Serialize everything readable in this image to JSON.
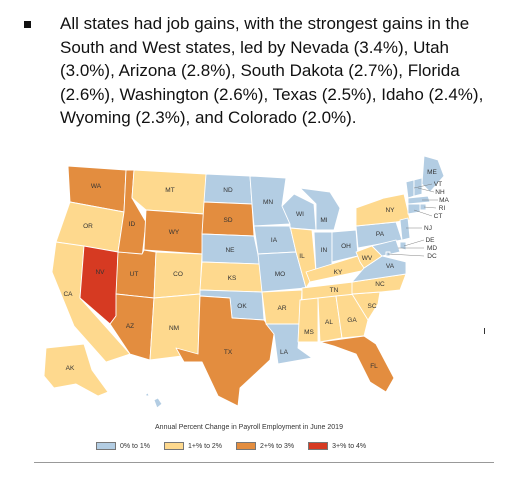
{
  "bullet": {
    "text": "All states had job gains, with the strongest gains in the South and West states, led by Nevada (3.4%), Utah (3.0%), Arizona (2.8%), South Dakota (2.7%), Florida (2.6%), Washington (2.6%), Texas (2.5%), Idaho (2.4%), Wyoming (2.3%), and Colorado (2.0%)."
  },
  "map": {
    "caption": "Annual Percent Change in Payroll Employment in June 2019",
    "legend": [
      {
        "id": "c1",
        "label": "0% to 1%",
        "color": "#b3cde3"
      },
      {
        "id": "c2",
        "label": "1+% to 2%",
        "color": "#fed98e"
      },
      {
        "id": "c3",
        "label": "2+% to 3%",
        "color": "#e38d3f"
      },
      {
        "id": "c4",
        "label": "3+% to 4%",
        "color": "#d63a22"
      }
    ],
    "states": [
      {
        "abbr": "WA",
        "class": "c3"
      },
      {
        "abbr": "OR",
        "class": "c2"
      },
      {
        "abbr": "CA",
        "class": "c2"
      },
      {
        "abbr": "NV",
        "class": "c4"
      },
      {
        "abbr": "ID",
        "class": "c3"
      },
      {
        "abbr": "MT",
        "class": "c2"
      },
      {
        "abbr": "WY",
        "class": "c3"
      },
      {
        "abbr": "UT",
        "class": "c3"
      },
      {
        "abbr": "AZ",
        "class": "c3"
      },
      {
        "abbr": "CO",
        "class": "c2"
      },
      {
        "abbr": "NM",
        "class": "c2"
      },
      {
        "abbr": "ND",
        "class": "c1"
      },
      {
        "abbr": "SD",
        "class": "c3"
      },
      {
        "abbr": "NE",
        "class": "c1"
      },
      {
        "abbr": "KS",
        "class": "c2"
      },
      {
        "abbr": "OK",
        "class": "c1"
      },
      {
        "abbr": "TX",
        "class": "c3"
      },
      {
        "abbr": "MN",
        "class": "c1"
      },
      {
        "abbr": "IA",
        "class": "c1"
      },
      {
        "abbr": "MO",
        "class": "c1"
      },
      {
        "abbr": "AR",
        "class": "c2"
      },
      {
        "abbr": "LA",
        "class": "c1"
      },
      {
        "abbr": "WI",
        "class": "c1"
      },
      {
        "abbr": "IL",
        "class": "c2"
      },
      {
        "abbr": "MI",
        "class": "c1"
      },
      {
        "abbr": "IN",
        "class": "c1"
      },
      {
        "abbr": "OH",
        "class": "c1"
      },
      {
        "abbr": "KY",
        "class": "c2"
      },
      {
        "abbr": "TN",
        "class": "c2"
      },
      {
        "abbr": "MS",
        "class": "c2"
      },
      {
        "abbr": "AL",
        "class": "c2"
      },
      {
        "abbr": "GA",
        "class": "c2"
      },
      {
        "abbr": "FL",
        "class": "c3"
      },
      {
        "abbr": "SC",
        "class": "c2"
      },
      {
        "abbr": "NC",
        "class": "c2"
      },
      {
        "abbr": "VA",
        "class": "c1"
      },
      {
        "abbr": "WV",
        "class": "c2"
      },
      {
        "abbr": "PA",
        "class": "c1"
      },
      {
        "abbr": "NY",
        "class": "c2"
      },
      {
        "abbr": "ME",
        "class": "c1"
      },
      {
        "abbr": "VT",
        "class": "c1"
      },
      {
        "abbr": "NH",
        "class": "c1"
      },
      {
        "abbr": "MA",
        "class": "c1"
      },
      {
        "abbr": "RI",
        "class": "c1"
      },
      {
        "abbr": "CT",
        "class": "c1"
      },
      {
        "abbr": "NJ",
        "class": "c1"
      },
      {
        "abbr": "DE",
        "class": "c1"
      },
      {
        "abbr": "MD",
        "class": "c1"
      },
      {
        "abbr": "DC",
        "class": "c1"
      },
      {
        "abbr": "AK",
        "class": "c2"
      },
      {
        "abbr": "HI",
        "class": "c1"
      }
    ]
  }
}
